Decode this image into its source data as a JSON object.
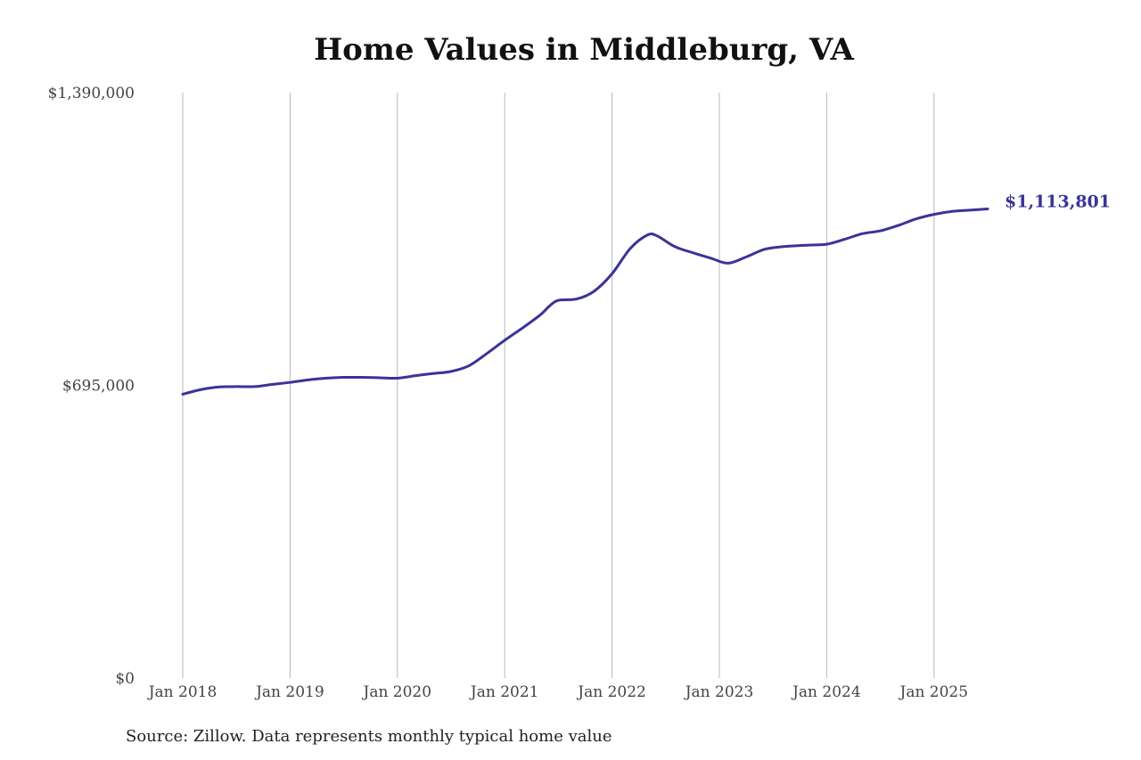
{
  "chart_data": {
    "type": "line",
    "title": "Home Values in Middleburg, VA",
    "xlabel": "",
    "ylabel": "",
    "ylim": [
      0,
      1390000
    ],
    "y_ticks": [
      {
        "value": 0,
        "label": "$0"
      },
      {
        "value": 695000,
        "label": "$695,000"
      },
      {
        "value": 1390000,
        "label": "$1,390,000"
      }
    ],
    "x_ticks": [
      {
        "value": 2018.0,
        "label": "Jan 2018"
      },
      {
        "value": 2019.0,
        "label": "Jan 2019"
      },
      {
        "value": 2020.0,
        "label": "Jan 2020"
      },
      {
        "value": 2021.0,
        "label": "Jan 2021"
      },
      {
        "value": 2022.0,
        "label": "Jan 2022"
      },
      {
        "value": 2023.0,
        "label": "Jan 2023"
      },
      {
        "value": 2024.0,
        "label": "Jan 2024"
      },
      {
        "value": 2025.0,
        "label": "Jan 2025"
      }
    ],
    "xlim": [
      2018.0,
      2025.5
    ],
    "grid": "vertical",
    "color": "#3a3399",
    "end_label": "$1,113,801",
    "series": [
      {
        "values": [
          [
            2018.0,
            674000
          ],
          [
            2018.17,
            685000
          ],
          [
            2018.33,
            691000
          ],
          [
            2018.5,
            692000
          ],
          [
            2018.67,
            692000
          ],
          [
            2018.83,
            697000
          ],
          [
            2019.0,
            702000
          ],
          [
            2019.17,
            708000
          ],
          [
            2019.33,
            712000
          ],
          [
            2019.5,
            714000
          ],
          [
            2019.67,
            714000
          ],
          [
            2019.83,
            713000
          ],
          [
            2020.0,
            712000
          ],
          [
            2020.17,
            718000
          ],
          [
            2020.33,
            723000
          ],
          [
            2020.5,
            728000
          ],
          [
            2020.67,
            742000
          ],
          [
            2020.83,
            770000
          ],
          [
            2021.0,
            802000
          ],
          [
            2021.17,
            832000
          ],
          [
            2021.33,
            862000
          ],
          [
            2021.42,
            884000
          ],
          [
            2021.5,
            897000
          ],
          [
            2021.67,
            900000
          ],
          [
            2021.83,
            918000
          ],
          [
            2022.0,
            960000
          ],
          [
            2022.17,
            1020000
          ],
          [
            2022.33,
            1052000
          ],
          [
            2022.42,
            1050000
          ],
          [
            2022.58,
            1025000
          ],
          [
            2022.75,
            1010000
          ],
          [
            2022.92,
            997000
          ],
          [
            2023.08,
            985000
          ],
          [
            2023.25,
            1000000
          ],
          [
            2023.42,
            1018000
          ],
          [
            2023.58,
            1024000
          ],
          [
            2023.83,
            1028000
          ],
          [
            2024.0,
            1030000
          ],
          [
            2024.17,
            1042000
          ],
          [
            2024.33,
            1055000
          ],
          [
            2024.5,
            1062000
          ],
          [
            2024.67,
            1075000
          ],
          [
            2024.83,
            1090000
          ],
          [
            2025.0,
            1101000
          ],
          [
            2025.17,
            1108000
          ],
          [
            2025.33,
            1111000
          ],
          [
            2025.5,
            1113801
          ]
        ]
      }
    ]
  },
  "source_note": "Source: Zillow. Data represents monthly typical home value"
}
